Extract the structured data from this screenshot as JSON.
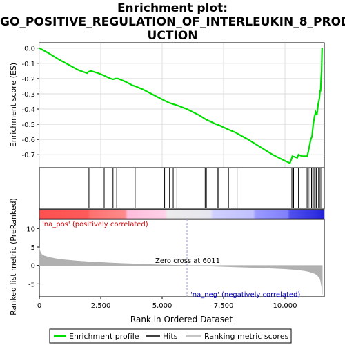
{
  "title_lines": [
    "Enrichment plot:",
    "GO_POSITIVE_REGULATION_OF_INTERLEUKIN_8_PROD",
    "UCTION"
  ],
  "colors": {
    "curve": "#00dd00",
    "hit": "#000000",
    "metric": "#b0b0b0",
    "panel_bg": "#eeeeee",
    "pos_label": "#cc0000",
    "neg_label": "#0000cc"
  },
  "chart_data": [
    {
      "type": "line",
      "ylabel": "Enrichment score (ES)",
      "xlim": [
        0,
        11600
      ],
      "ylim": [
        -0.785,
        0.035
      ],
      "yticks": [
        0.0,
        -0.1,
        -0.2,
        -0.3,
        -0.4,
        -0.5,
        -0.6,
        -0.7
      ],
      "ytick_labels": [
        "0.0",
        "-0.1",
        "-0.2",
        "-0.3",
        "-0.4",
        "-0.5",
        "-0.6",
        "-0.7"
      ],
      "grid": true,
      "series": [
        {
          "name": "Enrichment profile",
          "x": [
            0,
            400,
            800,
            1200,
            1600,
            1950,
            2000,
            2100,
            2400,
            2640,
            2700,
            2900,
            3000,
            3100,
            3200,
            3500,
            3800,
            3900,
            4200,
            4800,
            5100,
            5300,
            5500,
            5600,
            6000,
            6500,
            6800,
            7000,
            7200,
            7300,
            7500,
            7700,
            8000,
            8100,
            8500,
            9000,
            9500,
            10000,
            10200,
            10250,
            10300,
            10400,
            10500,
            10550,
            10700,
            10900,
            10950,
            11000,
            11050,
            11100,
            11150,
            11200,
            11250,
            11300,
            11350,
            11400,
            11430,
            11450,
            11470,
            11490,
            11510
          ],
          "values": [
            0.0,
            -0.035,
            -0.075,
            -0.11,
            -0.145,
            -0.165,
            -0.155,
            -0.15,
            -0.165,
            -0.18,
            -0.185,
            -0.2,
            -0.205,
            -0.2,
            -0.2,
            -0.22,
            -0.245,
            -0.25,
            -0.27,
            -0.32,
            -0.345,
            -0.36,
            -0.37,
            -0.375,
            -0.4,
            -0.44,
            -0.47,
            -0.485,
            -0.5,
            -0.505,
            -0.52,
            -0.535,
            -0.555,
            -0.565,
            -0.6,
            -0.65,
            -0.7,
            -0.74,
            -0.755,
            -0.735,
            -0.71,
            -0.715,
            -0.72,
            -0.7,
            -0.71,
            -0.71,
            -0.68,
            -0.64,
            -0.6,
            -0.58,
            -0.5,
            -0.45,
            -0.42,
            -0.44,
            -0.37,
            -0.33,
            -0.28,
            -0.28,
            -0.2,
            -0.15,
            0.0
          ]
        }
      ]
    },
    {
      "type": "scatter",
      "series": [
        {
          "name": "Hits",
          "x": [
            2020,
            2640,
            3000,
            3150,
            3900,
            5100,
            5300,
            5450,
            5600,
            6750,
            6800,
            7250,
            7300,
            7700,
            8050,
            10280,
            10350,
            10550,
            10900,
            10950,
            11020,
            11080,
            11130,
            11180,
            11230,
            11280,
            11370,
            11430,
            11490
          ]
        }
      ]
    },
    {
      "type": "area",
      "ylabel": "Ranked list metric (PreRanked)",
      "xlabel": "Rank in Ordered Dataset",
      "xlim": [
        0,
        11600
      ],
      "ylim": [
        -8.5,
        12.5
      ],
      "yticks": [
        10,
        5,
        0,
        -5
      ],
      "ytick_labels": [
        "10",
        "5",
        "0",
        "-5"
      ],
      "xticks": [
        0,
        2500,
        5000,
        7500,
        10000
      ],
      "xtick_labels": [
        "0",
        "2,500",
        "5,000",
        "7,500",
        "10,000"
      ],
      "series": [
        {
          "name": "Ranking metric scores",
          "x": [
            0,
            30,
            100,
            200,
            400,
            700,
            1000,
            1500,
            2000,
            3000,
            4000,
            5000,
            6011,
            7000,
            8000,
            9000,
            10000,
            10500,
            10800,
            11000,
            11200,
            11300,
            11400,
            11450,
            11500,
            11520
          ],
          "values": [
            4.8,
            3.8,
            3.0,
            2.6,
            2.2,
            1.8,
            1.55,
            1.25,
            1.0,
            0.65,
            0.38,
            0.15,
            0.0,
            -0.2,
            -0.42,
            -0.65,
            -0.95,
            -1.2,
            -1.45,
            -1.75,
            -2.2,
            -2.6,
            -3.3,
            -4.2,
            -6.0,
            -7.8
          ]
        }
      ],
      "annotations": {
        "zero_cross_label": "Zero cross at 6011",
        "zero_cross_x": 6011,
        "pos_label": "'na_pos' (positively correlated)",
        "neg_label": "'na_neg' (negatively correlated)"
      }
    }
  ],
  "legend": {
    "items": [
      {
        "label": "Enrichment profile",
        "color": "#00dd00"
      },
      {
        "label": "Hits",
        "color": "#000000"
      },
      {
        "label": "Ranking metric scores",
        "color": "#b0b0b0"
      }
    ]
  }
}
